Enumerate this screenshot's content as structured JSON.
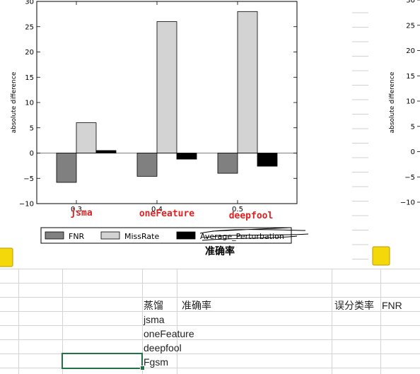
{
  "chart_data": {
    "type": "bar",
    "categories": [
      "0.3",
      "0.4",
      "0.5"
    ],
    "series": [
      {
        "name": "FNR",
        "values": [
          -5.8,
          -4.6,
          -4.0
        ],
        "color": "#808080"
      },
      {
        "name": "MissRate",
        "values": [
          6.0,
          26.0,
          28.0
        ],
        "color": "#d3d3d3"
      },
      {
        "name": "Average_Perturbation",
        "values": [
          0.5,
          -1.2,
          -2.6
        ],
        "color": "#000000"
      }
    ],
    "ylabel": "absolute difference",
    "xlabel": "准确率",
    "ylim": [
      -10,
      30
    ],
    "yticks": [
      "−10",
      "−5",
      "0",
      "5",
      "10",
      "15",
      "20",
      "25",
      "30"
    ],
    "annotations": [
      "jsma",
      "oneFeature",
      "deepfool"
    ],
    "legend": [
      "FNR",
      "MissRate",
      "Average_Perturbation"
    ],
    "legend_position": "bottom"
  },
  "second_chart": {
    "ylabel": "absolute difference",
    "yticks": [
      "−10",
      "−5",
      "0",
      "5",
      "10",
      "15",
      "20",
      "25",
      "30"
    ]
  },
  "sheet": {
    "header_row": [
      "蒸馏",
      "准确率",
      "误分类率",
      "FNR"
    ],
    "rows": [
      "jsma",
      "oneFeature",
      "deepfool",
      "Fgsm"
    ]
  }
}
